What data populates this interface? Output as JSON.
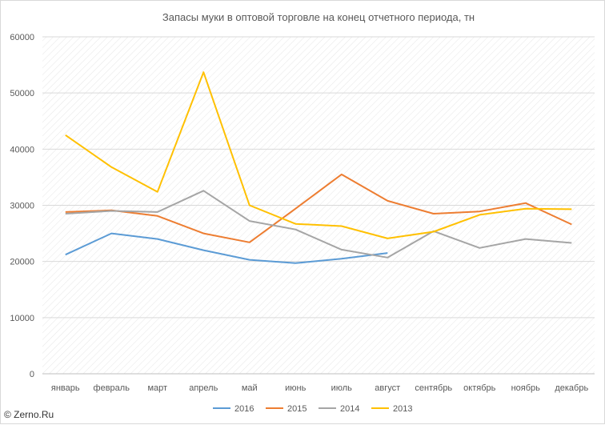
{
  "chart_data": {
    "type": "line",
    "title": "Запасы муки в оптовой торговле на конец отчетного периода, тн",
    "xlabel": "",
    "ylabel": "",
    "categories": [
      "январь",
      "февраль",
      "март",
      "апрель",
      "май",
      "июнь",
      "июль",
      "август",
      "сентябрь",
      "октябрь",
      "ноябрь",
      "декабрь"
    ],
    "ylim": [
      0,
      60000
    ],
    "yticks": [
      "0",
      "10000",
      "20000",
      "30000",
      "40000",
      "50000",
      "60000"
    ],
    "grid": true,
    "legend_position": "bottom",
    "series": [
      {
        "name": "2016",
        "color": "#5b9bd5",
        "values": [
          21200,
          25000,
          24000,
          22000,
          20300,
          19700,
          20500,
          21500,
          null,
          null,
          null,
          null
        ]
      },
      {
        "name": "2015",
        "color": "#ed7d31",
        "values": [
          28800,
          29100,
          28100,
          25000,
          23400,
          29400,
          35500,
          30800,
          28500,
          28900,
          30400,
          26600
        ]
      },
      {
        "name": "2014",
        "color": "#a5a5a5",
        "values": [
          28500,
          29000,
          28800,
          32600,
          27200,
          25700,
          22100,
          20700,
          25400,
          22400,
          24000,
          23300
        ]
      },
      {
        "name": "2013",
        "color": "#ffc000",
        "values": [
          42500,
          36800,
          32400,
          53700,
          30000,
          26700,
          26300,
          24100,
          25300,
          28300,
          29400,
          29300
        ]
      }
    ]
  },
  "watermark": "© Zerno.Ru"
}
